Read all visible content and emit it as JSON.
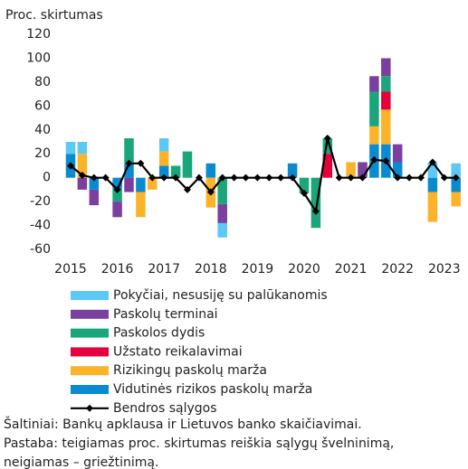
{
  "chart_data": {
    "type": "bar",
    "stacked": true,
    "ylabel": "Proc. skirtumas",
    "categories": [
      "2015",
      null,
      null,
      null,
      "2016",
      null,
      null,
      null,
      "2017",
      null,
      null,
      null,
      "2018",
      null,
      null,
      null,
      "2019",
      null,
      null,
      null,
      "2020",
      null,
      null,
      null,
      "2021",
      null,
      null,
      null,
      "2022",
      null,
      null,
      null,
      "2023",
      null
    ],
    "ylim": [
      -60,
      120
    ],
    "yticks": [
      -60,
      -40,
      -20,
      0,
      20,
      40,
      60,
      80,
      100,
      120
    ],
    "grid": false,
    "legend": "bottom",
    "series": [
      {
        "name": "Pokyčiai, nesusiję su palūkanomis",
        "color": "#5bc8f5",
        "values": [
          10,
          10,
          0,
          0,
          0,
          0,
          0,
          0,
          11,
          0,
          0,
          0,
          0,
          -12,
          0,
          0,
          0,
          0,
          0,
          0,
          0,
          0,
          0,
          0,
          0,
          0,
          0,
          0,
          0,
          0,
          0,
          13,
          0,
          12
        ]
      },
      {
        "name": "Paskolų terminai",
        "color": "#7b3f9e",
        "values": [
          0,
          -10,
          -13,
          0,
          -13,
          -12,
          0,
          0,
          0,
          0,
          0,
          0,
          0,
          -16,
          0,
          0,
          0,
          0,
          0,
          0,
          0,
          0,
          0,
          0,
          0,
          13,
          13,
          15,
          15,
          0,
          0,
          0,
          0,
          0
        ]
      },
      {
        "name": "Paskolos dydis",
        "color": "#1aa67a",
        "values": [
          0,
          0,
          0,
          0,
          -10,
          21,
          0,
          0,
          0,
          10,
          22,
          0,
          0,
          -22,
          0,
          0,
          0,
          0,
          0,
          0,
          -13,
          -42,
          13,
          0,
          0,
          0,
          29,
          13,
          0,
          0,
          0,
          0,
          0,
          0
        ]
      },
      {
        "name": "Užstato reikalavimai",
        "color": "#e4003b",
        "values": [
          0,
          0,
          0,
          0,
          0,
          0,
          0,
          0,
          0,
          0,
          0,
          0,
          0,
          0,
          0,
          0,
          0,
          0,
          0,
          0,
          0,
          0,
          20,
          0,
          0,
          0,
          0,
          15,
          0,
          0,
          0,
          0,
          0,
          0
        ]
      },
      {
        "name": "Rizikingų paskolų marža",
        "color": "#fbb42a",
        "values": [
          0,
          20,
          0,
          0,
          0,
          0,
          -21,
          -10,
          12,
          0,
          0,
          0,
          -25,
          0,
          0,
          0,
          0,
          0,
          0,
          0,
          0,
          0,
          0,
          0,
          13,
          0,
          15,
          29,
          0,
          0,
          0,
          -25,
          0,
          -12
        ]
      },
      {
        "name": "Vidutinės rizikos paskolų marža",
        "color": "#0a8bd0",
        "values": [
          20,
          0,
          -10,
          0,
          -10,
          12,
          -12,
          0,
          10,
          0,
          0,
          0,
          12,
          0,
          0,
          0,
          0,
          0,
          0,
          12,
          0,
          0,
          0,
          0,
          0,
          0,
          28,
          28,
          13,
          0,
          0,
          -12,
          0,
          -12
        ]
      },
      {
        "name": "Bendros sąlygos",
        "type": "line",
        "color": "#000000",
        "values": [
          10,
          2,
          0,
          0,
          -10,
          12,
          12,
          0,
          0,
          0,
          -10,
          0,
          -12,
          0,
          0,
          0,
          0,
          0,
          0,
          0,
          -13,
          -28,
          33,
          0,
          0,
          0,
          15,
          14,
          0,
          0,
          0,
          13,
          0,
          0
        ]
      }
    ],
    "notes": [
      "Šaltiniai: Bankų apklausa ir Lietuvos banko skaičiavimai.",
      "Pastaba: teigiamas proc. skirtumas reiškia sąlygų švelninimą,",
      "neigiamas – griežtinimą."
    ]
  }
}
